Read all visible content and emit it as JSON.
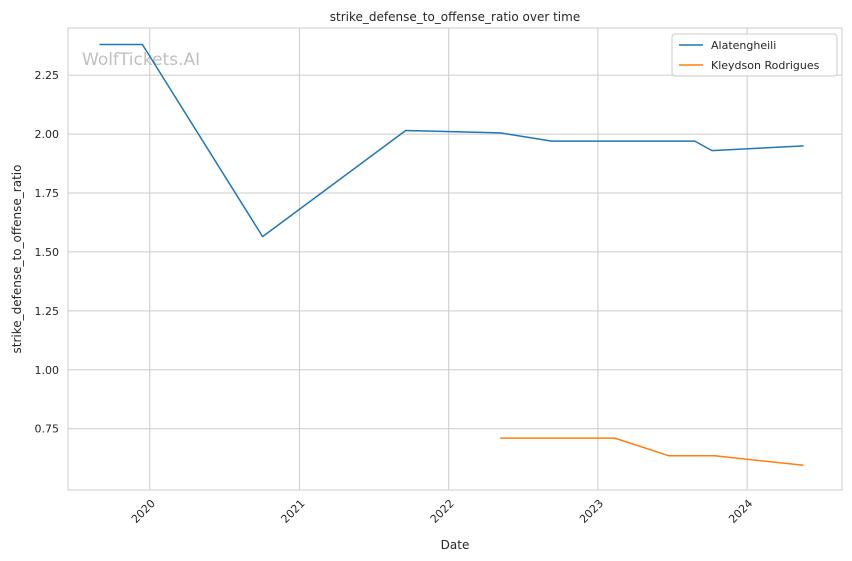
{
  "watermark": "WolfTickets.AI",
  "chart_data": {
    "type": "line",
    "title": "strike_defense_to_offense_ratio over time",
    "xlabel": "Date",
    "ylabel": "strike_defense_to_offense_ratio",
    "x_ticks": [
      "2020",
      "2021",
      "2022",
      "2023",
      "2024"
    ],
    "y_ticks": [
      "0.75",
      "1.00",
      "1.25",
      "1.50",
      "1.75",
      "2.00",
      "2.25"
    ],
    "xlim": [
      "2019-06-15",
      "2024-08-20"
    ],
    "ylim": [
      0.49,
      2.45
    ],
    "grid": true,
    "legend_position": "top-right",
    "series": [
      {
        "name": "Alatengheili",
        "color": "#1f77b4",
        "points": [
          {
            "x": "2019-08-31",
            "y": 2.38
          },
          {
            "x": "2019-12-14",
            "y": 2.38
          },
          {
            "x": "2020-10-03",
            "y": 1.565
          },
          {
            "x": "2021-09-18",
            "y": 2.015
          },
          {
            "x": "2022-05-07",
            "y": 2.005
          },
          {
            "x": "2022-09-10",
            "y": 1.97
          },
          {
            "x": "2023-02-04",
            "y": 1.97
          },
          {
            "x": "2023-08-26",
            "y": 1.97
          },
          {
            "x": "2023-10-07",
            "y": 1.93
          },
          {
            "x": "2024-05-18",
            "y": 1.95
          }
        ]
      },
      {
        "name": "Kleydson Rodrigues",
        "color": "#ff7f0e",
        "points": [
          {
            "x": "2022-05-07",
            "y": 0.71
          },
          {
            "x": "2023-02-11",
            "y": 0.71
          },
          {
            "x": "2023-06-24",
            "y": 0.635
          },
          {
            "x": "2023-10-14",
            "y": 0.635
          },
          {
            "x": "2024-05-18",
            "y": 0.595
          }
        ]
      }
    ]
  }
}
